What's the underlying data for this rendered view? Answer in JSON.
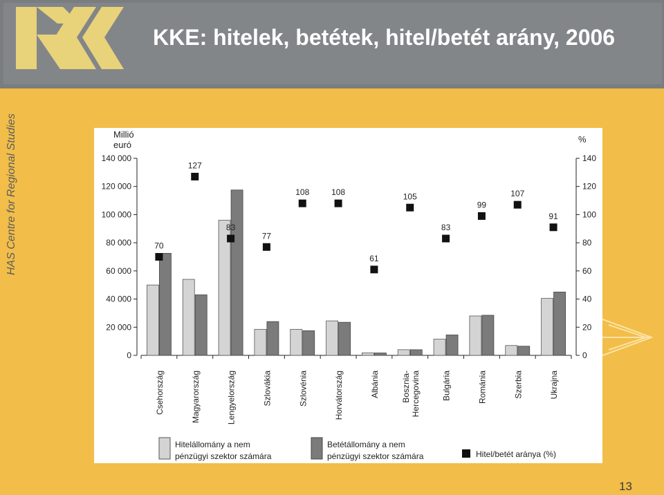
{
  "slide": {
    "title": "KKE: hitelek, betétek, hitel/betét arány, 2006",
    "side_text": "HAS Centre for Regional Studies",
    "page_number": "13"
  },
  "colors": {
    "header_bg": "#838689",
    "slide_bg": "#f2bd48",
    "loans_bar": "#d4d4d4",
    "deposits_bar": "#7b7b7b",
    "ratio_marker": "#111111"
  },
  "chart_data": {
    "type": "bar",
    "left_axis_unit": "Millió euró",
    "right_axis_unit": "%",
    "left_ylim": [
      0,
      140000
    ],
    "right_ylim": [
      0,
      140
    ],
    "left_ticks": [
      "0",
      "20 000",
      "40 000",
      "60 000",
      "80 000",
      "100 000",
      "120 000",
      "140 000"
    ],
    "right_ticks": [
      "0",
      "20",
      "40",
      "60",
      "80",
      "100",
      "120",
      "140"
    ],
    "categories": [
      "Csehország",
      "Magyarország",
      "Lengyelország",
      "Szlovákia",
      "Szlovénia",
      "Horvátország",
      "Albánia",
      "Bosznia-Hercegovina",
      "Bulgária",
      "Románia",
      "Szerbia",
      "Ukrajna"
    ],
    "series": [
      {
        "name": "Hitelállomány a nem pénzügyi szektor számára",
        "values": [
          50000,
          54000,
          96000,
          18500,
          18500,
          24500,
          1800,
          4000,
          11500,
          28000,
          7000,
          40500
        ]
      },
      {
        "name": "Betétállomány a nem pénzügyi szektor számára",
        "values": [
          72500,
          43000,
          117500,
          24000,
          17500,
          23500,
          1700,
          4000,
          14500,
          28500,
          6500,
          45000
        ]
      },
      {
        "name": "Hitel/betét aránya (%)",
        "axis": "right",
        "values": [
          70,
          127,
          83,
          77,
          108,
          108,
          61,
          105,
          83,
          99,
          107,
          91
        ]
      }
    ],
    "legend": {
      "loans": "Hitelállomány a nem\npénzügyi szektor számára",
      "deposits": "Betétállomány a nem\npénzügyi szektor számára",
      "ratio": "Hitel/betét aránya (%)"
    },
    "legend_position": "bottom",
    "grid": false
  }
}
